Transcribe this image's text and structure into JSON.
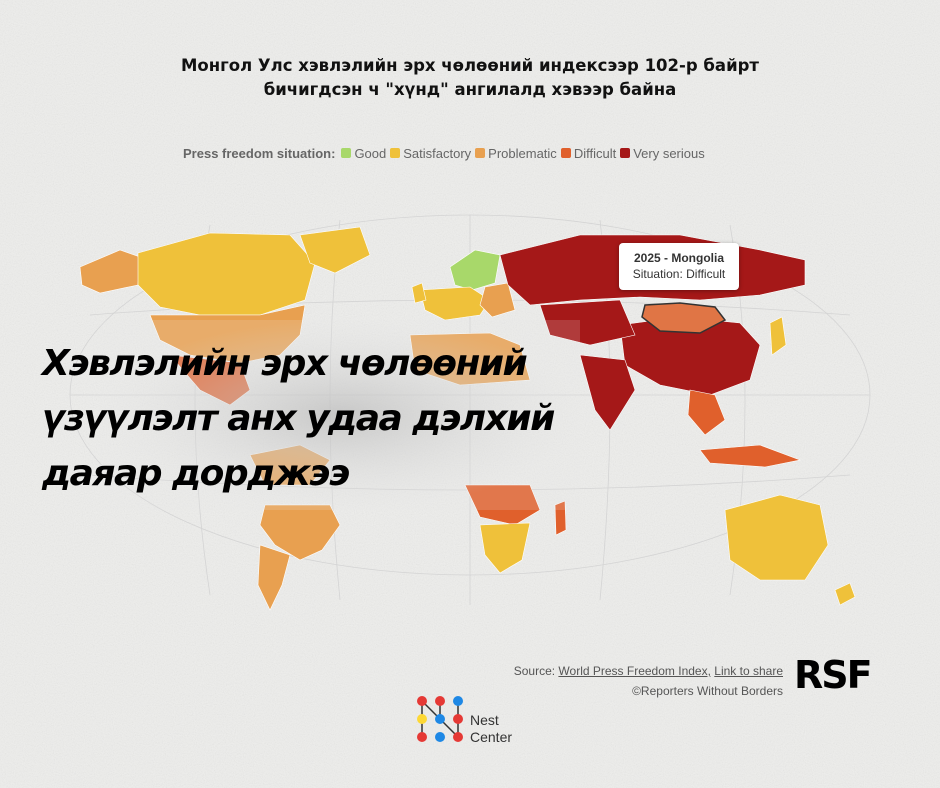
{
  "title": {
    "line1": "Монгол Улс хэвлэлийн эрх чөлөөний индексээр 102-р байрт",
    "line2": "бичигдсэн ч \"хүнд\" ангилалд хэвээр байна"
  },
  "legend": {
    "title": "Press freedom situation:",
    "items": [
      {
        "label": "Good",
        "color": "#a8d86a"
      },
      {
        "label": "Satisfactory",
        "color": "#efc13a"
      },
      {
        "label": "Problematic",
        "color": "#e8a050"
      },
      {
        "label": "Difficult",
        "color": "#e0602c"
      },
      {
        "label": "Very serious",
        "color": "#a51818"
      }
    ]
  },
  "tooltip": {
    "heading": "2025 - Mongolia",
    "situation": "Situation: Difficult"
  },
  "headline": {
    "line1": "Хэвлэлийн эрх чөлөөний",
    "line2": "үзүүлэлт анх удаа дэлхий",
    "line3": "даяар дорджээ"
  },
  "source": {
    "prefix": "Source:",
    "index_link": "World Press Freedom Index,",
    "share_link": "Link to share",
    "copyright": "©Reporters Without Borders"
  },
  "rsf_logo": "RSF",
  "nest_logo": {
    "line1": "Nest",
    "line2": "Center"
  }
}
